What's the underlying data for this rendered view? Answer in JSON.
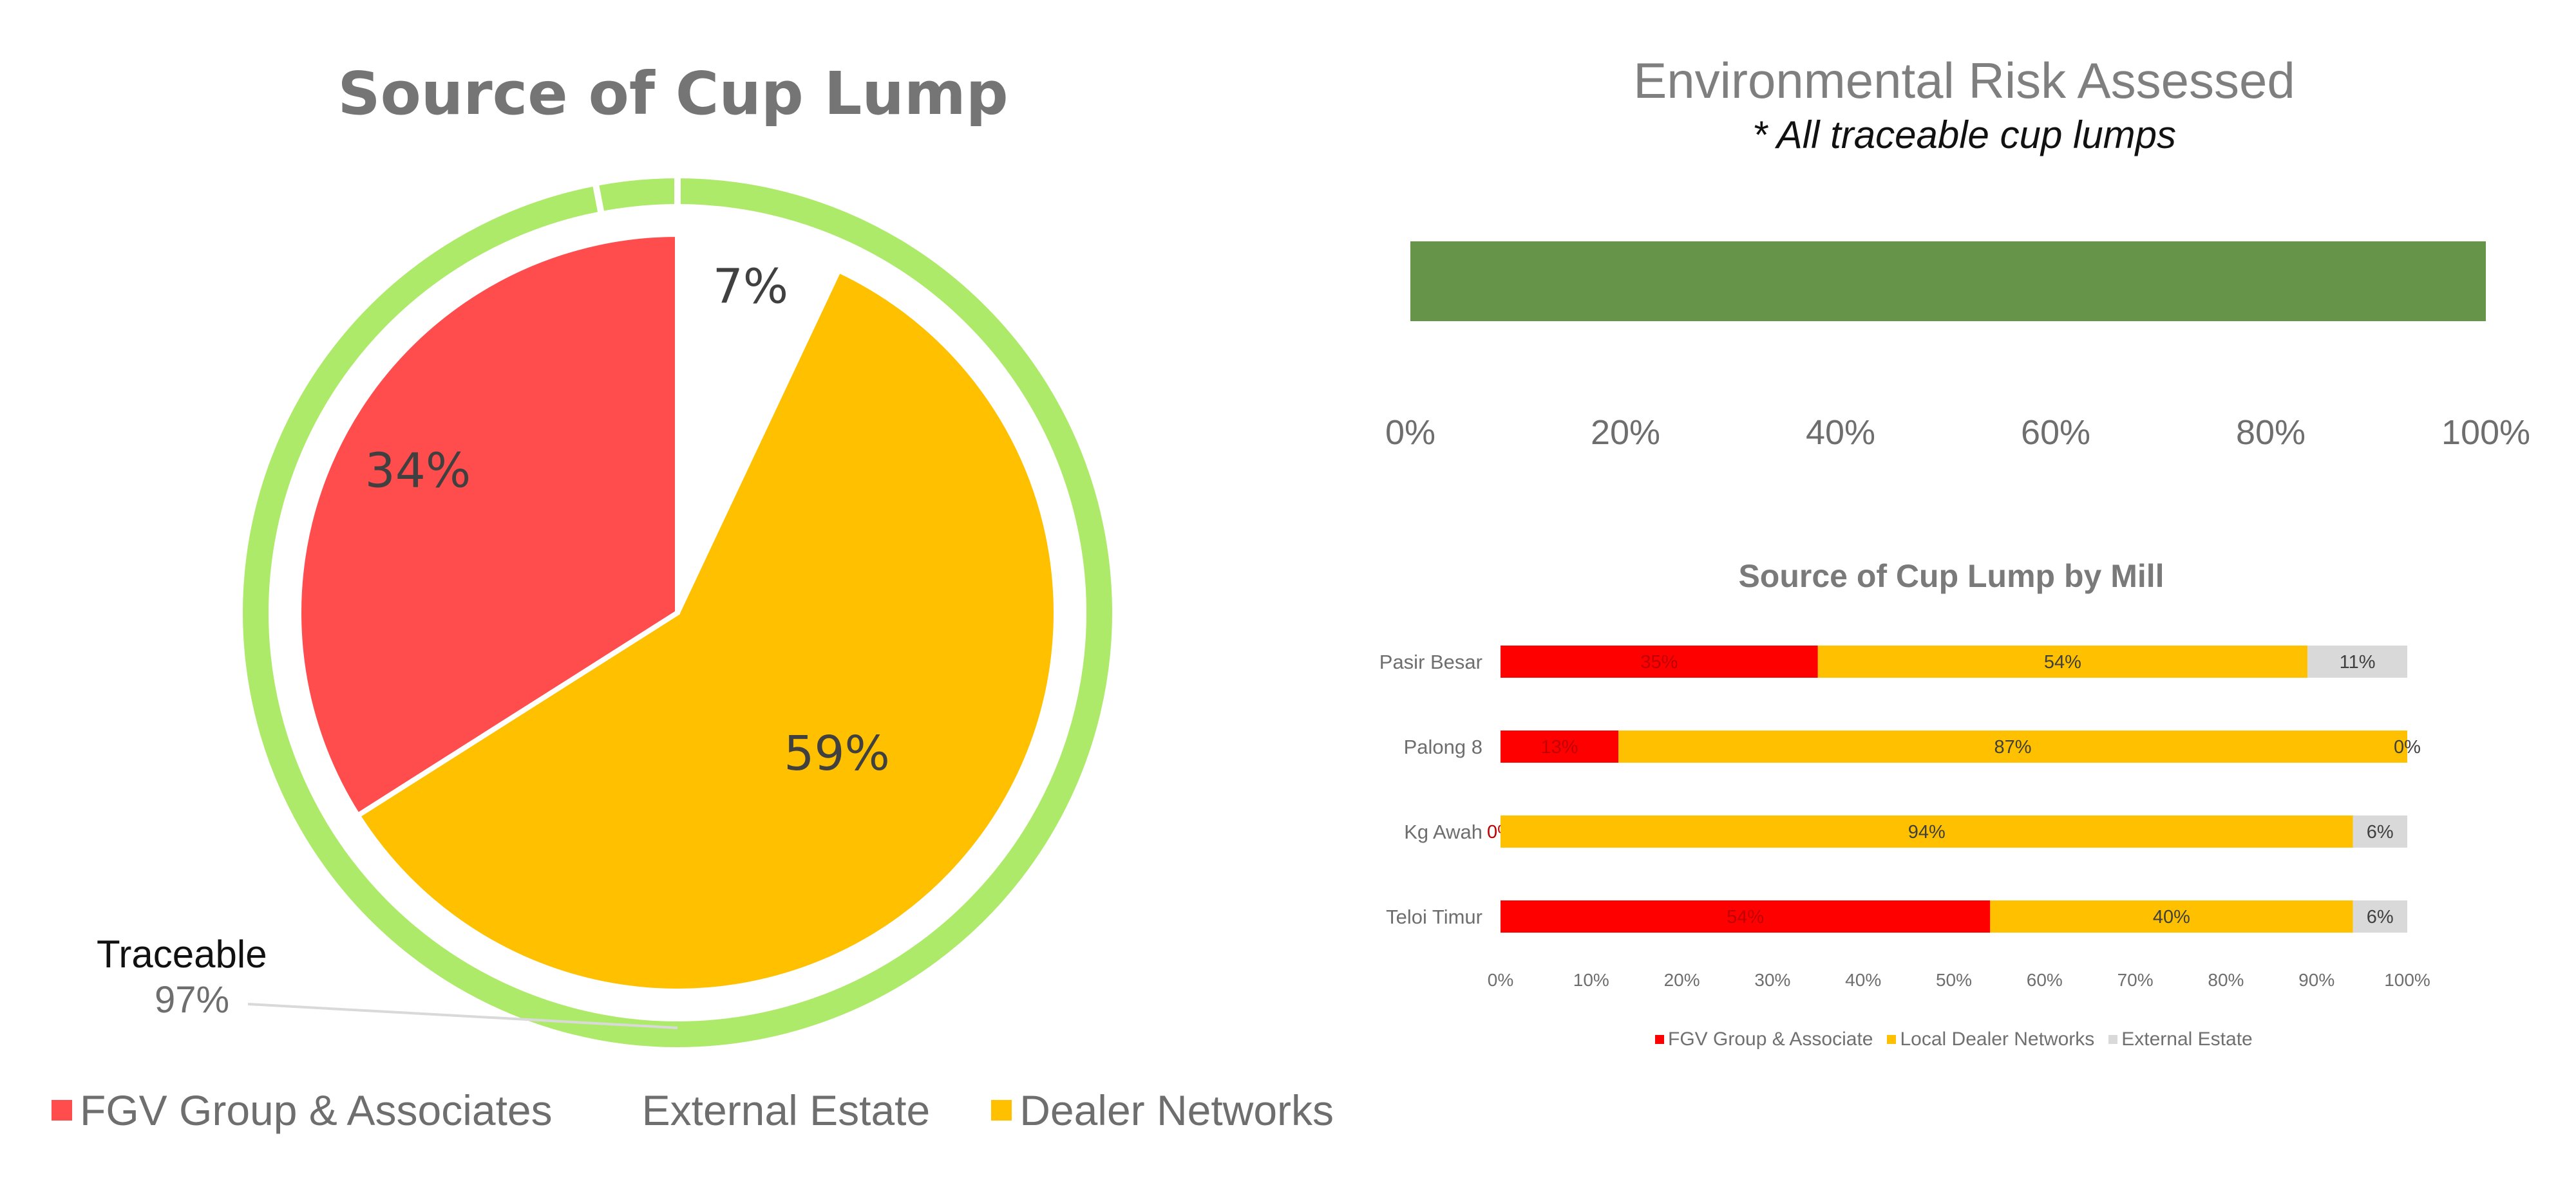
{
  "chart_data": [
    {
      "type": "pie",
      "title": "Source of Cup Lump",
      "slices": [
        {
          "name": "External Estate",
          "value": 7,
          "label": "7%",
          "color": "#ffffff"
        },
        {
          "name": "Dealer Networks",
          "value": 59,
          "label": "59%",
          "color": "#ffc000"
        },
        {
          "name": "FGV Group & Associates",
          "value": 34,
          "label": "34%",
          "color": "#ff4d4d"
        }
      ],
      "outer_ring": {
        "name": "Traceable",
        "value": 97,
        "label": "97%",
        "color": "#aeea6a"
      },
      "legend": [
        {
          "name": "FGV Group & Associates",
          "color": "#ff4d4d"
        },
        {
          "name": "External Estate",
          "color": "#ffffff"
        },
        {
          "name": "Dealer Networks",
          "color": "#ffc000"
        }
      ],
      "legend_position": "bottom-left"
    },
    {
      "type": "bar",
      "orientation": "horizontal",
      "title": "Environmental Risk Assessed",
      "subtitle": "* All traceable cup lumps",
      "values": [
        100
      ],
      "color": "#66954a",
      "xlim": [
        0,
        100
      ],
      "xticks": [
        "0%",
        "20%",
        "40%",
        "60%",
        "80%",
        "100%"
      ]
    },
    {
      "type": "bar",
      "orientation": "horizontal",
      "stacked": true,
      "title": "Source of Cup Lump by Mill",
      "categories": [
        "Pasir Besar",
        "Palong 8",
        "Kg Awah",
        "Teloi Timur"
      ],
      "series": [
        {
          "name": "FGV Group & Associate",
          "color": "#ff0000",
          "values": [
            35,
            13,
            0,
            54
          ],
          "labels": [
            "35%",
            "13%",
            "0%",
            "54%"
          ]
        },
        {
          "name": "Local Dealer Networks",
          "color": "#ffc000",
          "values": [
            54,
            87,
            94,
            40
          ],
          "labels": [
            "54%",
            "87%",
            "94%",
            "40%"
          ]
        },
        {
          "name": "External Estate",
          "color": "#d9d9d9",
          "values": [
            11,
            0,
            6,
            6
          ],
          "labels": [
            "11%",
            "0%",
            "6%",
            "6%"
          ]
        }
      ],
      "xlim": [
        0,
        100
      ],
      "xticks": [
        "0%",
        "10%",
        "20%",
        "30%",
        "40%",
        "50%",
        "60%",
        "70%",
        "80%",
        "90%",
        "100%"
      ],
      "legend_position": "bottom"
    }
  ]
}
